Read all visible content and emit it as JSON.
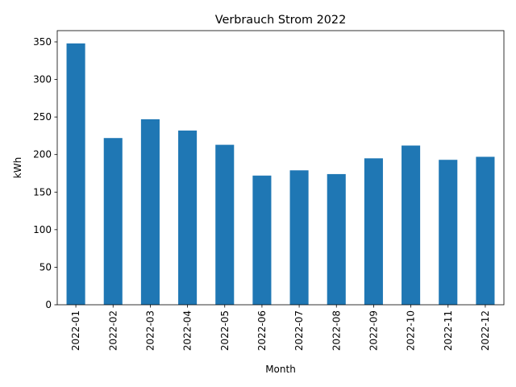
{
  "chart_data": {
    "type": "bar",
    "title": "Verbrauch Strom 2022",
    "xlabel": "Month",
    "ylabel": "kWh",
    "categories": [
      "2022-01",
      "2022-02",
      "2022-03",
      "2022-04",
      "2022-05",
      "2022-06",
      "2022-07",
      "2022-08",
      "2022-09",
      "2022-10",
      "2022-11",
      "2022-12"
    ],
    "series": [
      {
        "values": [
          348,
          222,
          247,
          232,
          213,
          172,
          179,
          174,
          195,
          212,
          193,
          197
        ],
        "color": "#1f77b4"
      }
    ],
    "ylim": [
      0,
      365
    ],
    "yticks": [
      0,
      50,
      100,
      150,
      200,
      250,
      300,
      350
    ],
    "grid": false,
    "legend": "none"
  }
}
